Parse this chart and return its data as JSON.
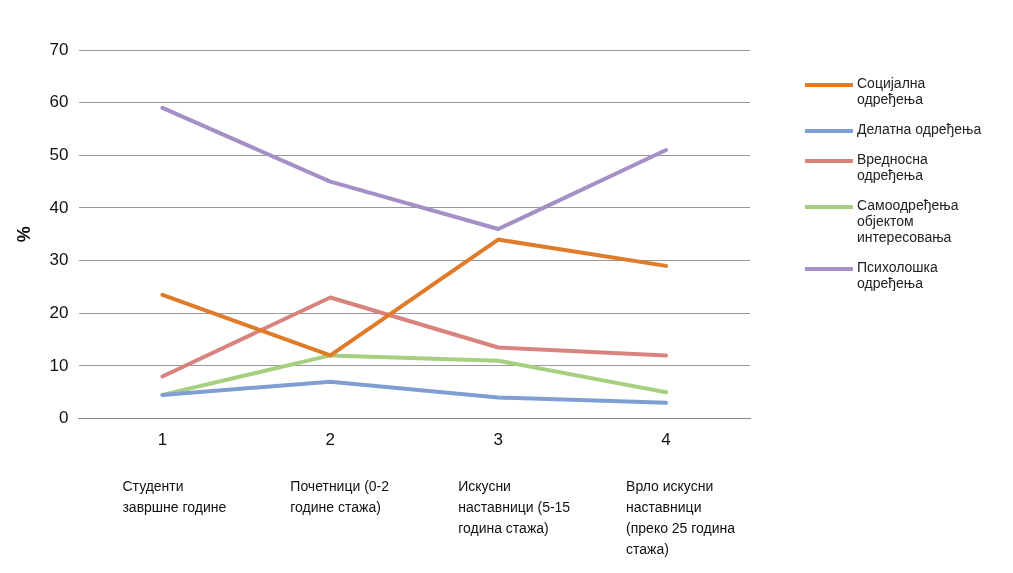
{
  "chart_data": {
    "type": "line",
    "ylabel": "%",
    "categories": [
      "1",
      "2",
      "3",
      "4"
    ],
    "ylim": [
      0,
      70
    ],
    "yticks": [
      0,
      10,
      20,
      30,
      40,
      50,
      60,
      70
    ],
    "grid": "y",
    "legend": "right",
    "marker": "none",
    "series": [
      {
        "name": "Социјална одређења",
        "color": "#e07b2a",
        "values": [
          23.5,
          12,
          34,
          29
        ]
      },
      {
        "name": "Делатна одређења",
        "color": "#7f9fd4",
        "values": [
          4.5,
          7,
          4,
          3
        ]
      },
      {
        "name": "Вредносна одређења",
        "color": "#d9837f",
        "values": [
          8,
          23,
          13.5,
          12
        ]
      },
      {
        "name": "Самоодређења објектом интересовања",
        "color": "#a6cf7f",
        "values": [
          4.5,
          12,
          11,
          5
        ]
      },
      {
        "name": "Психолошка одређења",
        "color": "#a48fc6",
        "values": [
          59,
          45,
          36,
          51
        ]
      }
    ],
    "annotations": [
      "Студенти завршне године",
      "Почетници (0-2 године стажа)",
      "Искусни наставници (5-15 година стажа)",
      "Врло искусни наставници (преко 25 година стажа)"
    ]
  }
}
